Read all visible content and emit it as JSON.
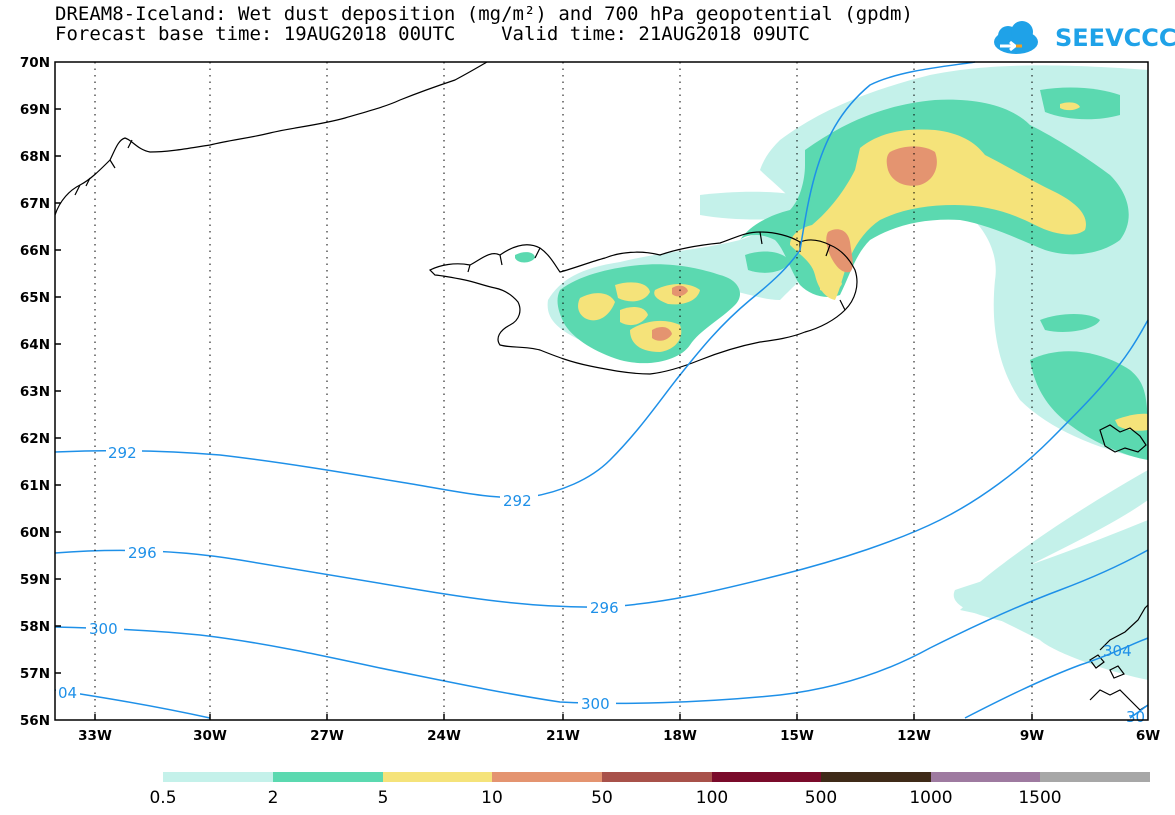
{
  "header": {
    "title_line1": "DREAM8-Iceland: Wet dust deposition (mg/m²) and 700 hPa geopotential (gpdm)",
    "title_line2": "Forecast base time: 19AUG2018 00UTC    Valid time: 21AUG2018 09UTC"
  },
  "logo": {
    "text": "SEEVCCC",
    "icon": "cloud-arrow-icon",
    "color": "#1fa2e8"
  },
  "map": {
    "lat_labels": [
      "70N",
      "69N",
      "68N",
      "67N",
      "66N",
      "65N",
      "64N",
      "63N",
      "62N",
      "61N",
      "60N",
      "59N",
      "58N",
      "57N",
      "56N"
    ],
    "lon_labels": [
      "33W",
      "30W",
      "27W",
      "24W",
      "21W",
      "18W",
      "15W",
      "12W",
      "9W",
      "6W"
    ],
    "contour_labels": [
      {
        "value": "292"
      },
      {
        "value": "292"
      },
      {
        "value": "296"
      },
      {
        "value": "296"
      },
      {
        "value": "300"
      },
      {
        "value": "300"
      },
      {
        "value": "04"
      },
      {
        "value": "304"
      },
      {
        "value": "30"
      }
    ],
    "contour_color": "#1e90e8",
    "coast_color": "#000000"
  },
  "colorbar": {
    "colors": [
      "#c4f1ea",
      "#5bd9b0",
      "#f5e37a",
      "#e49470",
      "#a8514a",
      "#7a0a2a",
      "#3f2a18",
      "#9e7aa0",
      "#a7a7a7"
    ],
    "labels": [
      "0.5",
      "2",
      "5",
      "10",
      "50",
      "100",
      "500",
      "1000",
      "1500"
    ]
  }
}
